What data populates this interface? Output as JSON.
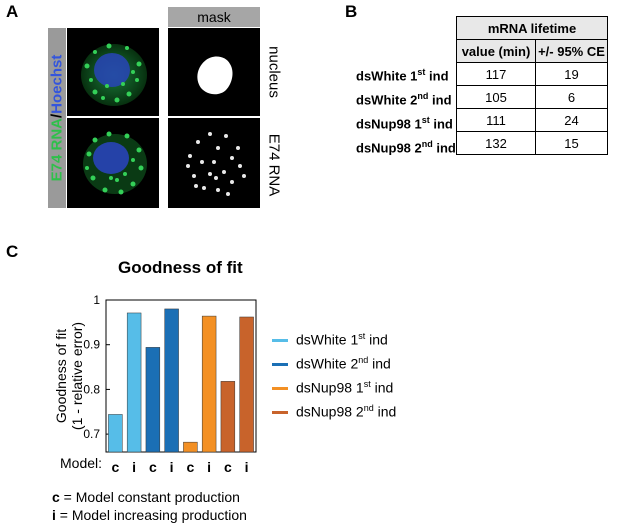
{
  "panel_a": {
    "letter": "A",
    "mask_label": "mask",
    "channel_e74": "E74 RNA",
    "channel_sep": "/",
    "channel_hoechst": "Hoechst",
    "row1_label": "nucleus",
    "row2_label": "E74 RNA",
    "colors": {
      "rna": "#2ec04a",
      "hoechst": "#3355dd"
    }
  },
  "panel_b": {
    "letter": "B",
    "table_title": "mRNA lifetime",
    "col_value": "value (min)",
    "col_ci": "+/- 95% CE",
    "rows": [
      {
        "name": "dsWhite 1",
        "sup": "st",
        "suffix": " ind",
        "value": "117",
        "ci": "19"
      },
      {
        "name": "dsWhite 2",
        "sup": "nd",
        "suffix": " ind",
        "value": "105",
        "ci": "6"
      },
      {
        "name": "dsNup98 1",
        "sup": "st",
        "suffix": " ind",
        "value": "111",
        "ci": "24"
      },
      {
        "name": "dsNup98 2",
        "sup": "nd",
        "suffix": " ind",
        "value": "132",
        "ci": "15"
      }
    ]
  },
  "panel_c": {
    "letter": "C",
    "model_label": "Model:",
    "note_c_key": "c",
    "note_c_text": " = Model constant production",
    "note_i_key": "i",
    "note_i_text": " = Model increasing production"
  },
  "chart_data": {
    "type": "bar",
    "title": "Goodness of fit",
    "ylabel_line1": "Goodness of fit",
    "ylabel_line2": "(1 - relative error)",
    "ylim": [
      0.66,
      1.0
    ],
    "yticks": [
      "0.7",
      "0.8",
      "0.9",
      "1"
    ],
    "categories": [
      "c",
      "i",
      "c",
      "i",
      "c",
      "i",
      "c",
      "i"
    ],
    "values": [
      0.744,
      0.971,
      0.894,
      0.98,
      0.682,
      0.964,
      0.818,
      0.962
    ],
    "bar_series": [
      0,
      0,
      1,
      1,
      2,
      2,
      3,
      3
    ],
    "series": [
      {
        "name": "dsWhite 1",
        "sup": "st",
        "suffix": " ind",
        "color": "#56bde8"
      },
      {
        "name": "dsWhite 2",
        "sup": "nd",
        "suffix": " ind",
        "color": "#1b6fb5"
      },
      {
        "name": "dsNup98 1",
        "sup": "st",
        "suffix": " ind",
        "color": "#f39024"
      },
      {
        "name": "dsNup98 2",
        "sup": "nd",
        "suffix": " ind",
        "color": "#c8632b"
      }
    ],
    "legend": "right",
    "grid": false
  }
}
